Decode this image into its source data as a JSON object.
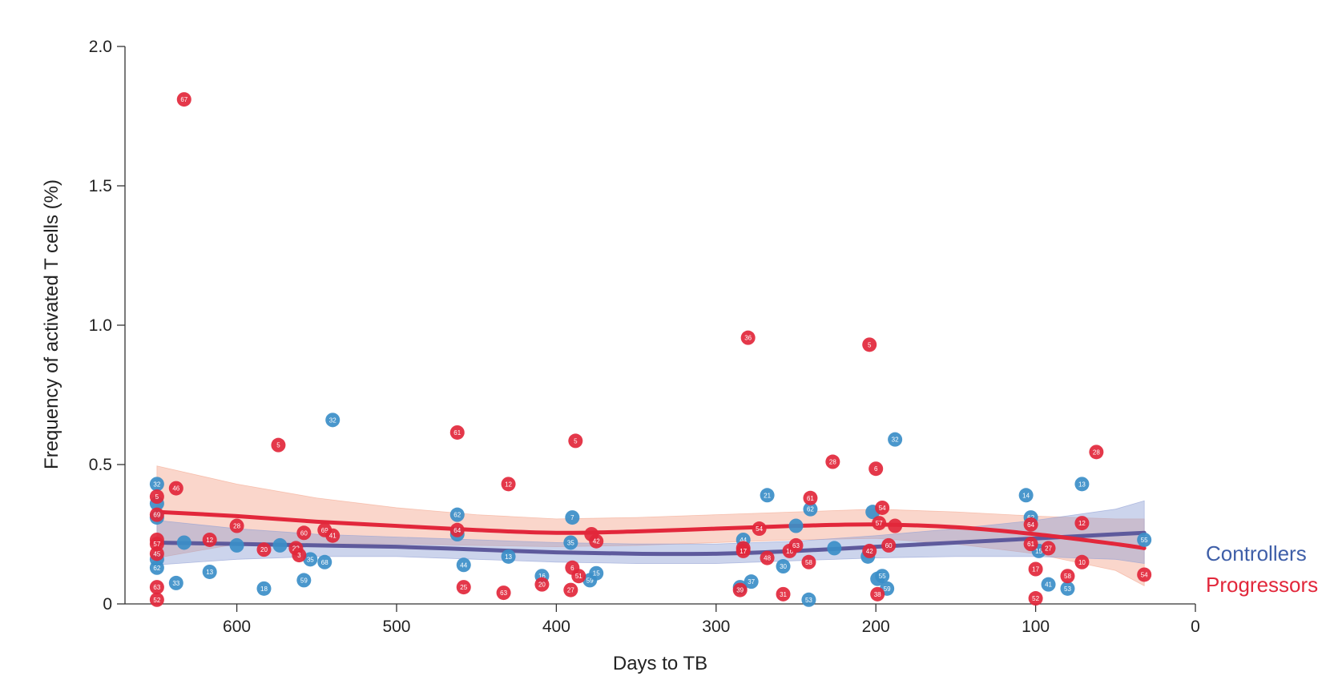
{
  "chart_data": {
    "type": "scatter",
    "xlabel": "Days to TB",
    "ylabel": "Frequency of  activated T cells (%)",
    "xlim": [
      670,
      0
    ],
    "ylim": [
      0,
      2.0
    ],
    "x_ticks": [
      "600",
      "500",
      "400",
      "300",
      "200",
      "100",
      "0"
    ],
    "x_tick_values": [
      600,
      500,
      400,
      300,
      200,
      100,
      0
    ],
    "y_ticks": [
      "0",
      "0.5",
      "1.0",
      "1.5",
      "2.0"
    ],
    "y_tick_values": [
      0,
      0.5,
      1.0,
      1.5,
      2.0
    ],
    "legend_position": "right",
    "series": [
      {
        "name": "Controllers",
        "color": "#3b8ec8",
        "trend_color": "#5e5a9c",
        "band_color": "#8f9fd4",
        "points": [
          {
            "x": 650,
            "y": 0.43,
            "label": "32"
          },
          {
            "x": 650,
            "y": 0.36,
            "label": ""
          },
          {
            "x": 650,
            "y": 0.31,
            "label": ""
          },
          {
            "x": 650,
            "y": 0.16,
            "label": ""
          },
          {
            "x": 650,
            "y": 0.13,
            "label": "62"
          },
          {
            "x": 638,
            "y": 0.075,
            "label": "33"
          },
          {
            "x": 633,
            "y": 0.22,
            "label": ""
          },
          {
            "x": 617,
            "y": 0.115,
            "label": "13"
          },
          {
            "x": 600,
            "y": 0.21,
            "label": ""
          },
          {
            "x": 583,
            "y": 0.055,
            "label": "18"
          },
          {
            "x": 573,
            "y": 0.21,
            "label": ""
          },
          {
            "x": 558,
            "y": 0.085,
            "label": "59"
          },
          {
            "x": 554,
            "y": 0.16,
            "label": "35"
          },
          {
            "x": 545,
            "y": 0.15,
            "label": "68"
          },
          {
            "x": 540,
            "y": 0.66,
            "label": "32"
          },
          {
            "x": 462,
            "y": 0.32,
            "label": "62"
          },
          {
            "x": 462,
            "y": 0.25,
            "label": ""
          },
          {
            "x": 458,
            "y": 0.14,
            "label": "44"
          },
          {
            "x": 430,
            "y": 0.17,
            "label": "13"
          },
          {
            "x": 409,
            "y": 0.1,
            "label": "16"
          },
          {
            "x": 390,
            "y": 0.31,
            "label": "7"
          },
          {
            "x": 391,
            "y": 0.22,
            "label": "35"
          },
          {
            "x": 379,
            "y": 0.085,
            "label": "59"
          },
          {
            "x": 375,
            "y": 0.11,
            "label": "15"
          },
          {
            "x": 285,
            "y": 0.06,
            "label": ""
          },
          {
            "x": 283,
            "y": 0.23,
            "label": "44"
          },
          {
            "x": 278,
            "y": 0.08,
            "label": "37"
          },
          {
            "x": 268,
            "y": 0.39,
            "label": "21"
          },
          {
            "x": 258,
            "y": 0.135,
            "label": "30"
          },
          {
            "x": 250,
            "y": 0.28,
            "label": ""
          },
          {
            "x": 242,
            "y": 0.015,
            "label": "53"
          },
          {
            "x": 241,
            "y": 0.34,
            "label": "62"
          },
          {
            "x": 226,
            "y": 0.2,
            "label": ""
          },
          {
            "x": 205,
            "y": 0.17,
            "label": ""
          },
          {
            "x": 202,
            "y": 0.33,
            "label": ""
          },
          {
            "x": 199,
            "y": 0.09,
            "label": ""
          },
          {
            "x": 196,
            "y": 0.1,
            "label": "55"
          },
          {
            "x": 193,
            "y": 0.055,
            "label": "59"
          },
          {
            "x": 188,
            "y": 0.59,
            "label": "32"
          },
          {
            "x": 106,
            "y": 0.39,
            "label": "14"
          },
          {
            "x": 103,
            "y": 0.31,
            "label": "62"
          },
          {
            "x": 98,
            "y": 0.19,
            "label": "15"
          },
          {
            "x": 92,
            "y": 0.07,
            "label": "41"
          },
          {
            "x": 80,
            "y": 0.055,
            "label": "53"
          },
          {
            "x": 71,
            "y": 0.43,
            "label": "13"
          },
          {
            "x": 32,
            "y": 0.23,
            "label": "55"
          }
        ]
      },
      {
        "name": "Progressors",
        "color": "#e2273b",
        "trend_color": "#e2273b",
        "band_color": "#f4a58c",
        "points": [
          {
            "x": 650,
            "y": 0.385,
            "label": "5"
          },
          {
            "x": 650,
            "y": 0.32,
            "label": "69"
          },
          {
            "x": 650,
            "y": 0.23,
            "label": ""
          },
          {
            "x": 650,
            "y": 0.215,
            "label": "57"
          },
          {
            "x": 650,
            "y": 0.18,
            "label": "45"
          },
          {
            "x": 650,
            "y": 0.06,
            "label": "63"
          },
          {
            "x": 650,
            "y": 0.015,
            "label": "52"
          },
          {
            "x": 638,
            "y": 0.415,
            "label": "46"
          },
          {
            "x": 633,
            "y": 1.81,
            "label": "67"
          },
          {
            "x": 617,
            "y": 0.23,
            "label": "12"
          },
          {
            "x": 600,
            "y": 0.28,
            "label": "28"
          },
          {
            "x": 583,
            "y": 0.195,
            "label": "20"
          },
          {
            "x": 574,
            "y": 0.57,
            "label": "5"
          },
          {
            "x": 563,
            "y": 0.2,
            "label": "22"
          },
          {
            "x": 561,
            "y": 0.175,
            "label": "3"
          },
          {
            "x": 558,
            "y": 0.255,
            "label": "60"
          },
          {
            "x": 545,
            "y": 0.265,
            "label": "69"
          },
          {
            "x": 540,
            "y": 0.245,
            "label": "41"
          },
          {
            "x": 462,
            "y": 0.615,
            "label": "61"
          },
          {
            "x": 462,
            "y": 0.265,
            "label": "64"
          },
          {
            "x": 458,
            "y": 0.06,
            "label": "25"
          },
          {
            "x": 433,
            "y": 0.04,
            "label": "63"
          },
          {
            "x": 430,
            "y": 0.43,
            "label": "12"
          },
          {
            "x": 409,
            "y": 0.07,
            "label": "20"
          },
          {
            "x": 391,
            "y": 0.05,
            "label": "27"
          },
          {
            "x": 390,
            "y": 0.13,
            "label": "6"
          },
          {
            "x": 388,
            "y": 0.585,
            "label": "5"
          },
          {
            "x": 386,
            "y": 0.1,
            "label": "51"
          },
          {
            "x": 378,
            "y": 0.25,
            "label": ""
          },
          {
            "x": 375,
            "y": 0.225,
            "label": "42"
          },
          {
            "x": 285,
            "y": 0.05,
            "label": "39"
          },
          {
            "x": 283,
            "y": 0.2,
            "label": ""
          },
          {
            "x": 283,
            "y": 0.19,
            "label": "17"
          },
          {
            "x": 280,
            "y": 0.955,
            "label": "36"
          },
          {
            "x": 273,
            "y": 0.27,
            "label": "54"
          },
          {
            "x": 268,
            "y": 0.165,
            "label": "48"
          },
          {
            "x": 258,
            "y": 0.035,
            "label": "31"
          },
          {
            "x": 254,
            "y": 0.19,
            "label": "16"
          },
          {
            "x": 250,
            "y": 0.21,
            "label": "63"
          },
          {
            "x": 242,
            "y": 0.15,
            "label": "58"
          },
          {
            "x": 241,
            "y": 0.38,
            "label": "61"
          },
          {
            "x": 227,
            "y": 0.51,
            "label": "28"
          },
          {
            "x": 204,
            "y": 0.93,
            "label": "5"
          },
          {
            "x": 204,
            "y": 0.19,
            "label": "42"
          },
          {
            "x": 200,
            "y": 0.485,
            "label": "6"
          },
          {
            "x": 199,
            "y": 0.035,
            "label": "38"
          },
          {
            "x": 198,
            "y": 0.29,
            "label": "57"
          },
          {
            "x": 196,
            "y": 0.345,
            "label": "54"
          },
          {
            "x": 192,
            "y": 0.21,
            "label": "60"
          },
          {
            "x": 188,
            "y": 0.28,
            "label": ""
          },
          {
            "x": 103,
            "y": 0.285,
            "label": "64"
          },
          {
            "x": 103,
            "y": 0.215,
            "label": "61"
          },
          {
            "x": 100,
            "y": 0.125,
            "label": "17"
          },
          {
            "x": 100,
            "y": 0.02,
            "label": "52"
          },
          {
            "x": 92,
            "y": 0.2,
            "label": "27"
          },
          {
            "x": 80,
            "y": 0.1,
            "label": "58"
          },
          {
            "x": 71,
            "y": 0.29,
            "label": "12"
          },
          {
            "x": 71,
            "y": 0.15,
            "label": "10"
          },
          {
            "x": 62,
            "y": 0.545,
            "label": "28"
          },
          {
            "x": 32,
            "y": 0.105,
            "label": "54"
          }
        ]
      }
    ],
    "trends": {
      "Controllers": {
        "x": [
          650,
          600,
          550,
          500,
          450,
          400,
          350,
          300,
          250,
          200,
          150,
          100,
          50,
          32
        ],
        "fit": [
          0.22,
          0.215,
          0.21,
          0.205,
          0.195,
          0.185,
          0.18,
          0.18,
          0.19,
          0.205,
          0.22,
          0.235,
          0.25,
          0.255
        ],
        "lower": [
          0.14,
          0.16,
          0.17,
          0.17,
          0.16,
          0.15,
          0.145,
          0.145,
          0.155,
          0.165,
          0.17,
          0.17,
          0.16,
          0.145
        ],
        "upper": [
          0.3,
          0.27,
          0.25,
          0.24,
          0.23,
          0.22,
          0.215,
          0.215,
          0.225,
          0.245,
          0.27,
          0.3,
          0.34,
          0.37
        ]
      },
      "Progressors": {
        "x": [
          650,
          600,
          550,
          500,
          450,
          400,
          350,
          300,
          250,
          200,
          150,
          100,
          50,
          32
        ],
        "fit": [
          0.33,
          0.315,
          0.295,
          0.28,
          0.265,
          0.255,
          0.26,
          0.27,
          0.28,
          0.285,
          0.275,
          0.25,
          0.215,
          0.2
        ],
        "lower": [
          0.165,
          0.215,
          0.215,
          0.215,
          0.21,
          0.205,
          0.21,
          0.22,
          0.23,
          0.235,
          0.215,
          0.18,
          0.12,
          0.065
        ],
        "upper": [
          0.495,
          0.43,
          0.38,
          0.345,
          0.32,
          0.305,
          0.31,
          0.32,
          0.33,
          0.34,
          0.33,
          0.315,
          0.305,
          0.305
        ]
      }
    }
  }
}
